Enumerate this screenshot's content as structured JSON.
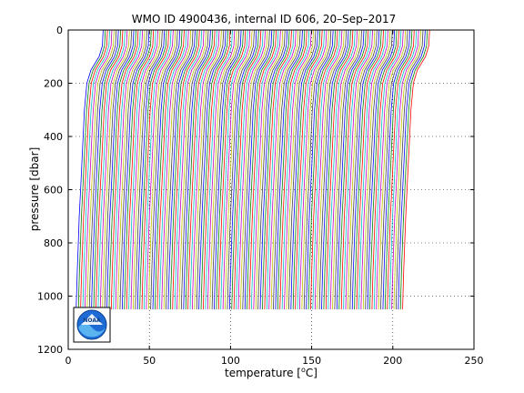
{
  "chart_data": {
    "type": "line",
    "title": "WMO ID 4900436, internal ID 606, 20–Sep–2017",
    "xlabel_prefix": "temperature [",
    "xlabel_unit": "C]",
    "xlabel_degree": "o",
    "ylabel": "pressure [dbar]",
    "xlim": [
      0,
      250
    ],
    "ylim": [
      0,
      1200
    ],
    "y_reversed": true,
    "x_ticks": [
      0,
      50,
      100,
      150,
      200,
      250
    ],
    "y_ticks": [
      0,
      200,
      400,
      600,
      800,
      1000,
      1200
    ],
    "grid": true,
    "grid_style": "dotted",
    "series_colors": [
      "#0000ff",
      "#008000",
      "#ff0000",
      "#00bfbf",
      "#bf00bf",
      "#bfbf00",
      "#404040"
    ],
    "profiles": {
      "count": 150,
      "offset_step_degC": 1.35,
      "base_profile": [
        [
          21.5,
          0
        ],
        [
          21.0,
          60
        ],
        [
          19.0,
          100
        ],
        [
          14.0,
          150
        ],
        [
          11.5,
          200
        ],
        [
          10.0,
          300
        ],
        [
          9.2,
          400
        ],
        [
          8.4,
          500
        ],
        [
          7.6,
          600
        ],
        [
          6.8,
          700
        ],
        [
          6.2,
          800
        ],
        [
          5.6,
          900
        ],
        [
          5.2,
          980
        ],
        [
          4.9,
          1050
        ]
      ]
    }
  },
  "logo": {
    "text": "NOAA"
  }
}
